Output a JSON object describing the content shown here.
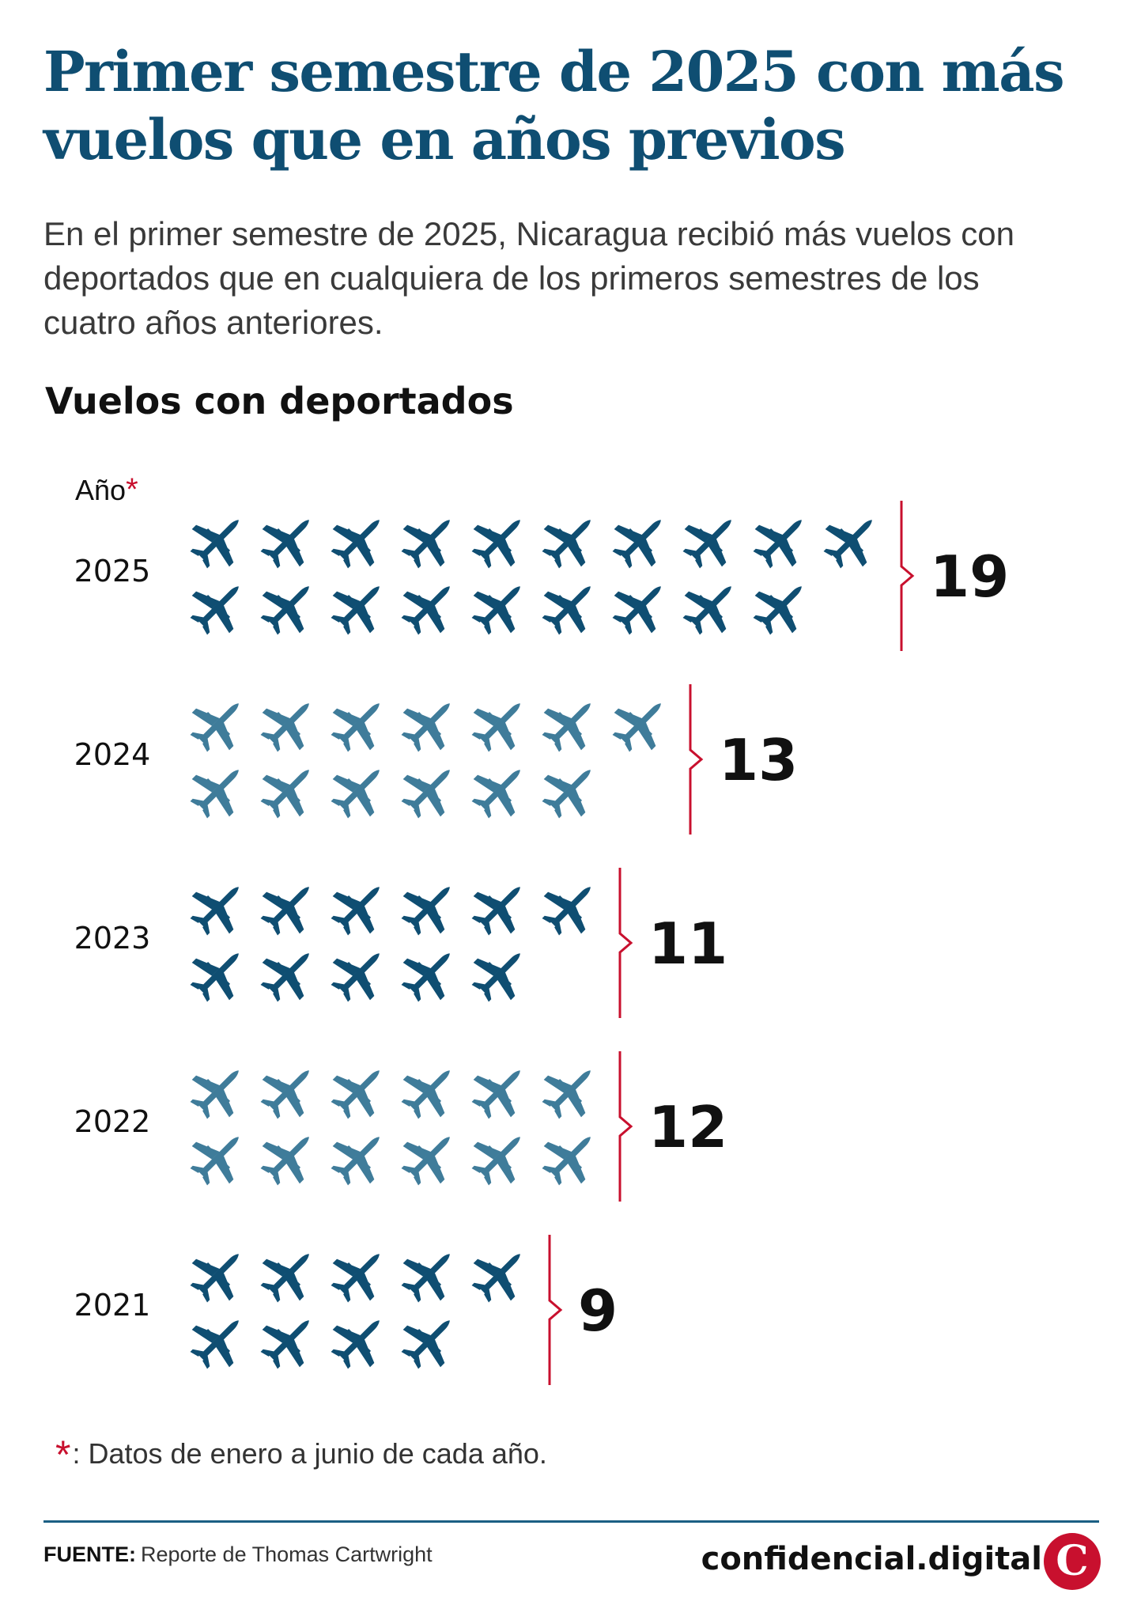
{
  "title": "Primer semestre de 2025 con más vuelos que en años previos",
  "subtitle": "En el primer semestre de 2025, Nicaragua recibió más vuelos con deportados que en cualquiera de los primeros semestres de los cuatro años anteriores.",
  "footnote": {
    "marker": "*",
    "text": ": Datos de enero a junio de cada año."
  },
  "source": {
    "label": "FUENTE:",
    "text": "Reporte de Thomas Cartwright"
  },
  "brand": {
    "name": "confidencial.digital",
    "logo_letter": "C"
  },
  "chart_data": {
    "type": "pictogram",
    "title": "Vuelos con deportados",
    "category_label": "Año",
    "category_label_marker": "*",
    "unit_icon": "airplane-icon",
    "colors": {
      "dark": "#0f4e72",
      "light": "#3f7c9a",
      "bracket": "#c8102e"
    },
    "rows": [
      {
        "year": "2025",
        "value": 19,
        "per_line": 10,
        "shade": "dark"
      },
      {
        "year": "2024",
        "value": 13,
        "per_line": 7,
        "shade": "light"
      },
      {
        "year": "2023",
        "value": 11,
        "per_line": 6,
        "shade": "dark"
      },
      {
        "year": "2022",
        "value": 12,
        "per_line": 6,
        "shade": "light"
      },
      {
        "year": "2021",
        "value": 9,
        "per_line": 5,
        "shade": "dark"
      }
    ]
  }
}
